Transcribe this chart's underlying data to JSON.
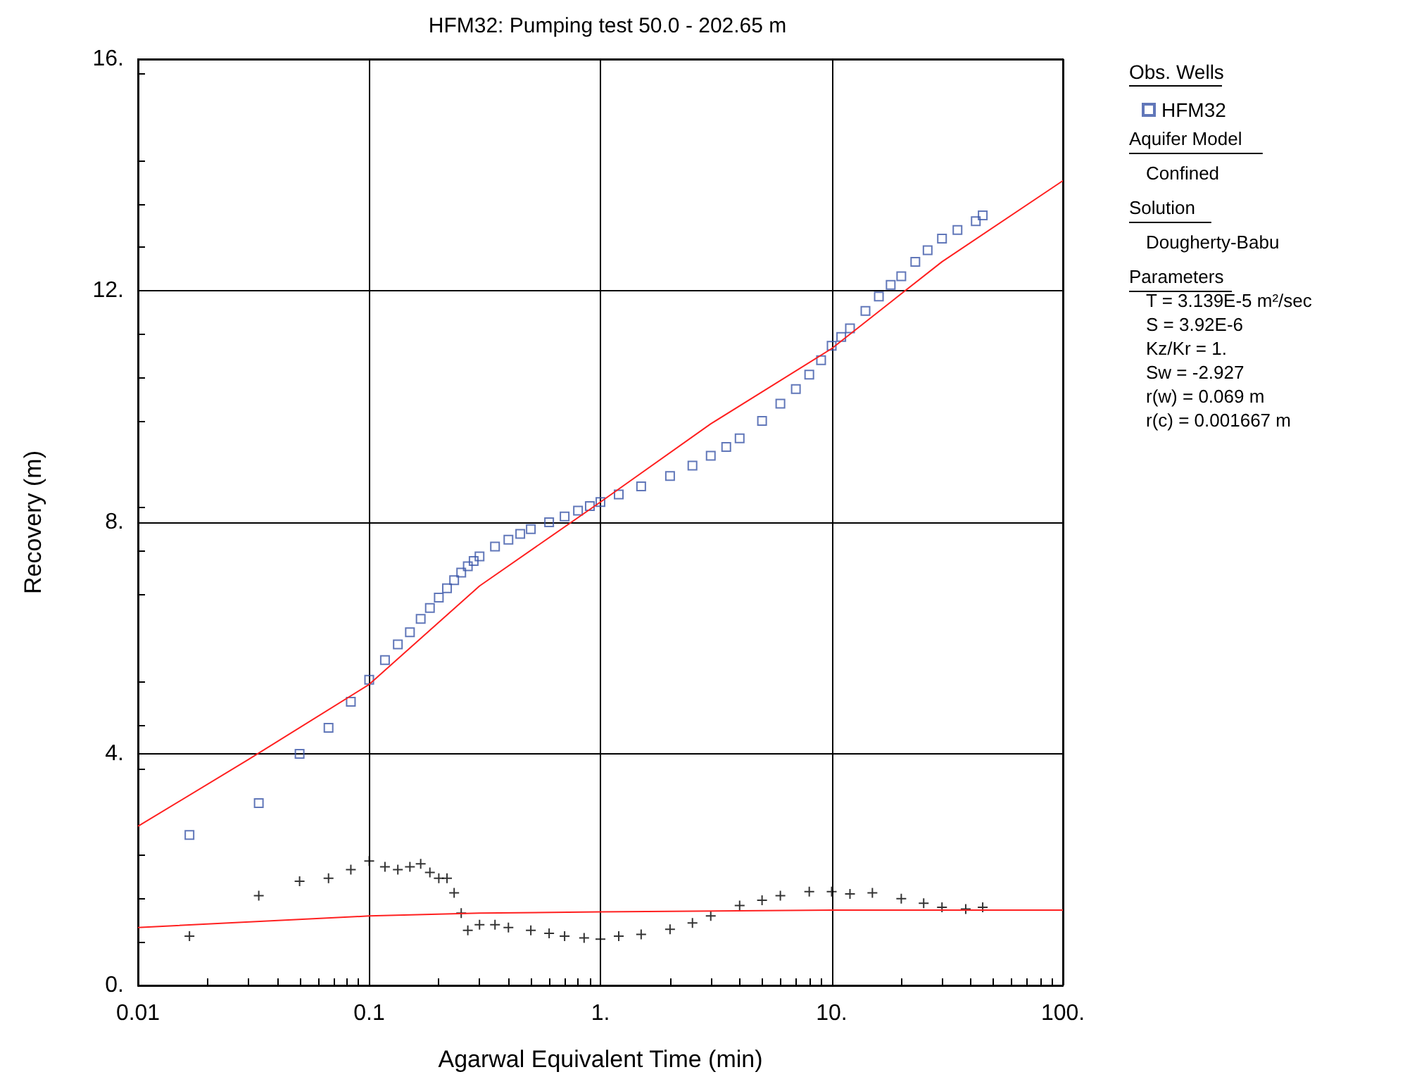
{
  "chart_data": {
    "type": "scatter",
    "title": "HFM32: Pumping test 50.0 - 202.65 m",
    "xlabel": "Agarwal Equivalent Time (min)",
    "ylabel": "Recovery (m)",
    "legend_title": "Obs. Wells",
    "legend": "top right",
    "grid": true,
    "log": "x",
    "xlim": [
      0.01,
      100
    ],
    "xticks": [
      0.01,
      0.1,
      {
        "value": 1,
        "label": "1."
      },
      {
        "value": 10,
        "label": "10."
      },
      {
        "value": 100,
        "label": "100."
      }
    ],
    "ylim": [
      0,
      16
    ],
    "yticks": [
      {
        "value": 0,
        "label": "0."
      },
      {
        "value": 4,
        "label": "4."
      },
      {
        "value": 8,
        "label": "8."
      },
      {
        "value": 12,
        "label": "12."
      },
      {
        "value": 16,
        "label": "16."
      }
    ],
    "annotations": [
      "Aquifer Model",
      "Confined",
      "Solution",
      "Dougherty-Babu",
      "Parameters",
      "T = 3.139E-5 m²/sec",
      "S = 3.92E-6",
      "Kz/Kr = 1.",
      "Sw = -2.927",
      "r(w) = 0.069 m",
      "r(c) = 0.001667 m"
    ],
    "series": [
      {
        "name": "HFM32",
        "marker": "square",
        "color": "#3a55a8",
        "x": [
          0.0167,
          0.0333,
          0.05,
          0.0667,
          0.0833,
          0.1,
          0.117,
          0.133,
          0.15,
          0.167,
          0.183,
          0.2,
          0.217,
          0.233,
          0.25,
          0.267,
          0.283,
          0.3,
          0.35,
          0.4,
          0.45,
          0.5,
          0.6,
          0.7,
          0.8,
          0.9,
          1,
          1.2,
          1.5,
          2,
          2.5,
          3,
          3.5,
          4,
          5,
          6,
          7,
          8,
          9,
          10,
          11,
          12,
          14,
          16,
          18,
          20,
          23,
          26,
          30,
          35,
          42,
          45
        ],
        "values": [
          2.6,
          3.15,
          4.0,
          4.45,
          4.9,
          5.28,
          5.62,
          5.89,
          6.1,
          6.33,
          6.52,
          6.7,
          6.86,
          7.0,
          7.13,
          7.24,
          7.33,
          7.41,
          7.58,
          7.7,
          7.8,
          7.88,
          8.0,
          8.1,
          8.2,
          8.28,
          8.35,
          8.48,
          8.62,
          8.8,
          8.98,
          9.15,
          9.3,
          9.45,
          9.75,
          10.05,
          10.3,
          10.55,
          10.8,
          11.05,
          11.2,
          11.35,
          11.65,
          11.9,
          12.1,
          12.25,
          12.5,
          12.7,
          12.9,
          13.05,
          13.2,
          13.3
        ]
      },
      {
        "type": "line",
        "marker": "none",
        "line_style": "solid",
        "color": "#ff2020",
        "x": [
          0.01,
          0.03,
          0.1,
          0.3,
          1,
          3,
          10,
          30,
          100
        ],
        "values": [
          2.75,
          3.9,
          5.2,
          6.9,
          8.35,
          9.7,
          11.0,
          12.5,
          13.9
        ]
      },
      {
        "marker": "cross",
        "color": "#000000",
        "x": [
          0.0167,
          0.0333,
          0.05,
          0.0667,
          0.0833,
          0.1,
          0.117,
          0.133,
          0.15,
          0.167,
          0.183,
          0.2,
          0.217,
          0.233,
          0.25,
          0.267,
          0.3,
          0.35,
          0.4,
          0.5,
          0.6,
          0.7,
          0.85,
          1,
          1.2,
          1.5,
          2,
          2.5,
          3,
          4,
          5,
          6,
          8,
          10,
          12,
          15,
          20,
          25,
          30,
          38,
          45
        ],
        "values": [
          0.85,
          1.55,
          1.8,
          1.85,
          2.0,
          2.15,
          2.05,
          2.0,
          2.05,
          2.1,
          1.95,
          1.85,
          1.85,
          1.6,
          1.25,
          0.95,
          1.05,
          1.05,
          1.0,
          0.95,
          0.9,
          0.85,
          0.82,
          0.8,
          0.85,
          0.88,
          0.97,
          1.08,
          1.2,
          1.38,
          1.47,
          1.55,
          1.62,
          1.62,
          1.58,
          1.6,
          1.5,
          1.42,
          1.35,
          1.32,
          1.35
        ]
      },
      {
        "type": "line",
        "marker": "none",
        "line_style": "solid",
        "color": "#ff2020",
        "x": [
          0.01,
          0.1,
          0.3,
          1,
          10,
          100
        ],
        "values": [
          1.0,
          1.2,
          1.25,
          1.27,
          1.3,
          1.3
        ]
      }
    ]
  }
}
